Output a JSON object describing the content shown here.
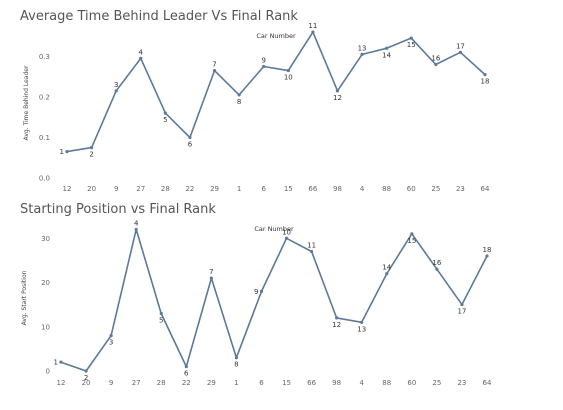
{
  "chart_data": [
    {
      "type": "line",
      "title": "Average Time Behind Leader Vs Final Rank",
      "top_axis_label": "Car Number",
      "ylabel": "Avg. Time Behind Leader",
      "xlabel": "",
      "categories": [
        "12",
        "20",
        "9",
        "27",
        "28",
        "22",
        "29",
        "1",
        "6",
        "15",
        "66",
        "98",
        "4",
        "88",
        "60",
        "25",
        "23",
        "64"
      ],
      "values": [
        0.065,
        0.075,
        0.215,
        0.295,
        0.16,
        0.1,
        0.265,
        0.205,
        0.275,
        0.265,
        0.36,
        0.215,
        0.305,
        0.32,
        0.345,
        0.28,
        0.31,
        0.255
      ],
      "point_labels": [
        "1",
        "2",
        "3",
        "4",
        "5",
        "6",
        "7",
        "8",
        "9",
        "10",
        "11",
        "12",
        "13",
        "14",
        "15",
        "16",
        "17",
        "18"
      ],
      "ylim": [
        0,
        0.37
      ],
      "yticks": [
        0.0,
        0.1,
        0.2,
        0.3
      ],
      "ytick_labels": [
        "0.0",
        "0.1",
        "0.2",
        "0.3"
      ],
      "grid": false,
      "line_color": "#5b7a9a"
    },
    {
      "type": "line",
      "title": "Starting Position vs Final Rank",
      "top_axis_label": "Car Number",
      "ylabel": "Avg. Start Position",
      "xlabel": "",
      "categories": [
        "12",
        "20",
        "9",
        "27",
        "28",
        "22",
        "29",
        "1",
        "6",
        "15",
        "66",
        "98",
        "4",
        "88",
        "60",
        "25",
        "23",
        "64"
      ],
      "values": [
        2,
        0,
        8,
        32,
        13,
        1,
        21,
        3,
        18,
        30,
        27,
        12,
        11,
        22,
        31,
        23,
        15,
        26
      ],
      "point_labels": [
        "1",
        "2",
        "3",
        "4",
        "5",
        "6",
        "7",
        "8",
        "9",
        "10",
        "11",
        "12",
        "13",
        "14",
        "15",
        "16",
        "17",
        "18"
      ],
      "ylim": [
        0,
        33
      ],
      "yticks": [
        0,
        10,
        20,
        30
      ],
      "ytick_labels": [
        "0",
        "10",
        "20",
        "30"
      ],
      "grid": false,
      "line_color": "#5b7a9a"
    }
  ]
}
